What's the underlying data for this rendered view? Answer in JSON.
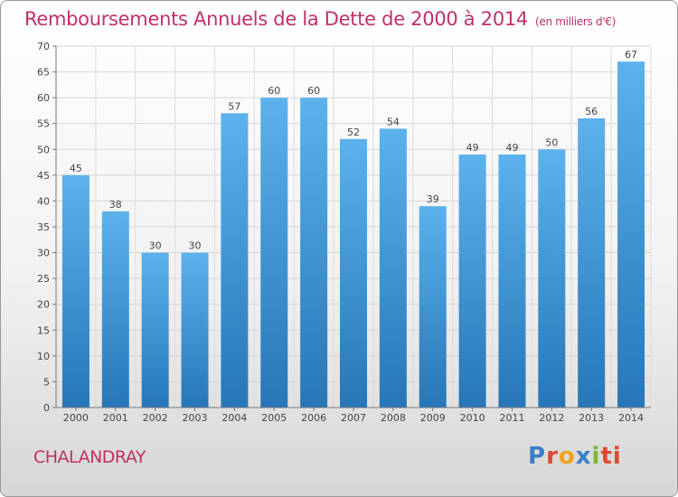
{
  "title": "Remboursements Annuels de la Dette de 2000 à 2014",
  "subtitle": "(en milliers d'€)",
  "commune": "CHALANDRAY",
  "logo_letters": [
    "P",
    "r",
    "o",
    "x",
    "i",
    "ti"
  ],
  "colors": {
    "title": "#c0306a",
    "bar_light": "#5aaee8",
    "bar_dark": "#2a7cc0"
  },
  "chart_data": {
    "type": "bar",
    "categories": [
      "2000",
      "2001",
      "2002",
      "2003",
      "2004",
      "2005",
      "2006",
      "2007",
      "2008",
      "2009",
      "2010",
      "2011",
      "2012",
      "2013",
      "2014"
    ],
    "values": [
      45,
      38,
      30,
      30,
      57,
      60,
      60,
      52,
      54,
      39,
      49,
      49,
      50,
      56,
      67
    ],
    "data_labels": [
      "45",
      "38",
      "30",
      "30",
      "57",
      "60",
      "60",
      "52",
      "54",
      "39",
      "49",
      "49",
      "50",
      "56",
      "67"
    ],
    "ylim": [
      0,
      70
    ],
    "yticks": [
      "0",
      "5",
      "10",
      "15",
      "20",
      "25",
      "30",
      "35",
      "40",
      "45",
      "50",
      "55",
      "60",
      "65",
      "70"
    ],
    "grid": true
  }
}
